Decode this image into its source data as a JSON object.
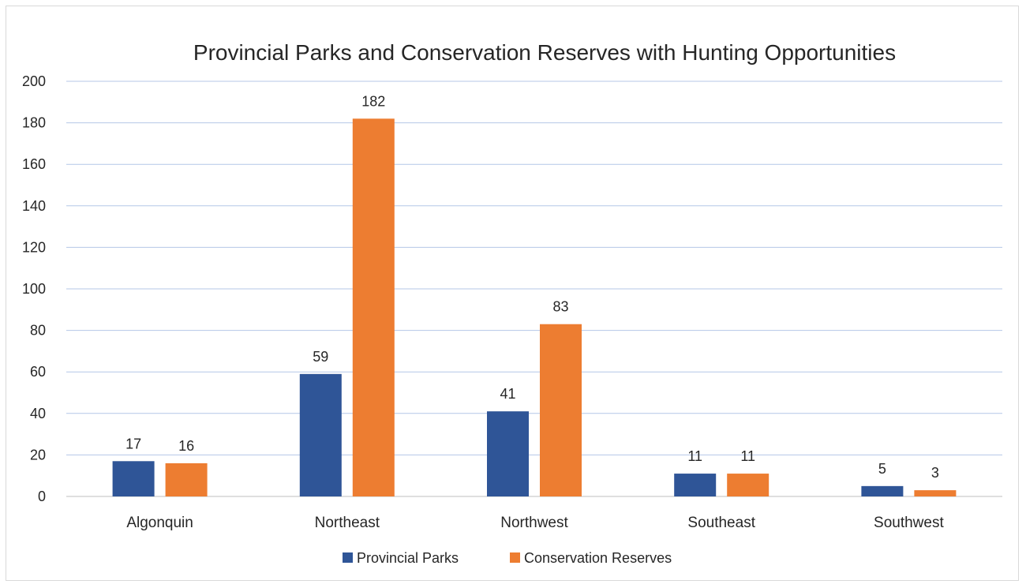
{
  "chart_data": {
    "type": "bar",
    "title": "Provincial Parks and Conservation Reserves with Hunting Opportunities",
    "categories": [
      "Algonquin",
      "Northeast",
      "Northwest",
      "Southeast",
      "Southwest"
    ],
    "series": [
      {
        "name": "Provincial Parks",
        "values": [
          17,
          59,
          41,
          11,
          5
        ],
        "color": "#2f5597"
      },
      {
        "name": "Conservation Reserves",
        "values": [
          16,
          182,
          83,
          11,
          3
        ],
        "color": "#ed7d31"
      }
    ],
    "ylim": [
      0,
      200
    ],
    "yticks": [
      "0",
      "20",
      "40",
      "60",
      "80",
      "100",
      "120",
      "140",
      "160",
      "180",
      "200"
    ],
    "xlabel": "",
    "ylabel": "",
    "grid": true,
    "legend_position": "bottom",
    "data_labels": true
  }
}
